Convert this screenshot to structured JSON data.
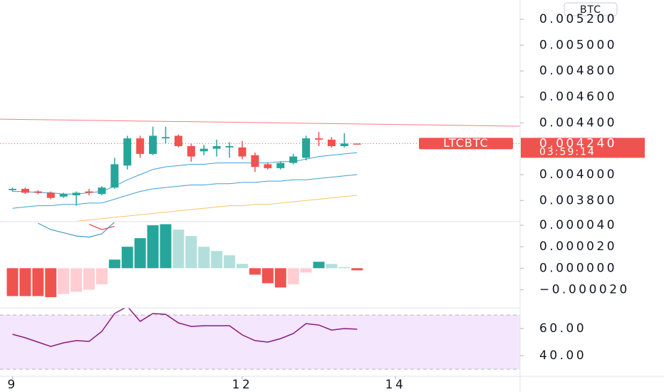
{
  "chart_data": [
    {
      "type": "candlestick",
      "symbol": "LTCBTC",
      "currency": "BTC",
      "x": [
        9,
        9.1667,
        9.3333,
        9.5,
        9.6667,
        9.8333,
        10,
        10.1667,
        10.3333,
        10.5,
        10.6667,
        10.8333,
        11,
        11.1667,
        11.3333,
        11.5,
        11.6667,
        11.8333,
        12,
        12.1667,
        12.3333,
        12.5,
        12.6667,
        12.8333,
        13,
        13.1667,
        13.3333,
        13.5
      ],
      "open": [
        0.00388,
        0.00389,
        0.00387,
        0.00386,
        0.00383,
        0.00384,
        0.00387,
        0.00385,
        0.0039,
        0.00407,
        0.00428,
        0.00416,
        0.00428,
        0.0043,
        0.00422,
        0.00418,
        0.0042,
        0.00421,
        0.00421,
        0.00415,
        0.00408,
        0.00405,
        0.00409,
        0.00413,
        0.00428,
        0.00427,
        0.00422,
        0.00424
      ],
      "high": [
        0.0039,
        0.0039,
        0.00388,
        0.00387,
        0.00386,
        0.00387,
        0.00389,
        0.00391,
        0.00413,
        0.0043,
        0.0043,
        0.00437,
        0.00437,
        0.00431,
        0.00424,
        0.00423,
        0.00427,
        0.00425,
        0.00426,
        0.00417,
        0.00409,
        0.0041,
        0.00416,
        0.0043,
        0.00433,
        0.00429,
        0.00432,
        0.00424
      ],
      "low": [
        0.00387,
        0.00385,
        0.00385,
        0.00381,
        0.00382,
        0.00376,
        0.00384,
        0.00384,
        0.00389,
        0.00404,
        0.00413,
        0.00415,
        0.00424,
        0.00421,
        0.0041,
        0.00415,
        0.00414,
        0.00413,
        0.00412,
        0.00402,
        0.00404,
        0.00404,
        0.00408,
        0.00411,
        0.00422,
        0.00421,
        0.00421,
        0.00424
      ],
      "close": [
        0.00389,
        0.00386,
        0.00386,
        0.00382,
        0.00385,
        0.00386,
        0.00386,
        0.0039,
        0.00408,
        0.00428,
        0.00416,
        0.0043,
        0.00429,
        0.00422,
        0.00414,
        0.0042,
        0.00422,
        0.00422,
        0.00414,
        0.00406,
        0.00405,
        0.00409,
        0.00414,
        0.00428,
        0.00427,
        0.00422,
        0.00424,
        0.00424
      ],
      "up_color": "#26a69a",
      "down_color": "#ef5350",
      "series": [
        {
          "color": "#3fa0d8",
          "values": [
            0.00387,
            0.00387,
            0.00386,
            0.00386,
            0.00385,
            0.00385,
            0.00386,
            0.00387,
            0.00391,
            0.00396,
            0.004,
            0.00404,
            0.00406,
            0.00407,
            0.00408,
            0.00408,
            0.00409,
            0.00409,
            0.00409,
            0.00409,
            0.00409,
            0.0041,
            0.0041,
            0.00412,
            0.00414,
            0.00415,
            0.00416,
            0.00417
          ]
        },
        {
          "color": "#3fa0d8",
          "values": [
            0.00374,
            0.00375,
            0.00376,
            0.00376,
            0.00377,
            0.00377,
            0.00378,
            0.00378,
            0.00381,
            0.00384,
            0.00387,
            0.00389,
            0.0039,
            0.00391,
            0.00392,
            0.00392,
            0.00393,
            0.00393,
            0.00394,
            0.00394,
            0.00395,
            0.00395,
            0.00396,
            0.00396,
            0.00397,
            0.00398,
            0.00399,
            0.004
          ]
        },
        {
          "color": "#f5c56b",
          "values": [
            null,
            null,
            null,
            null,
            null,
            0.00364,
            0.00365,
            0.00366,
            0.00367,
            0.00368,
            0.00369,
            0.0037,
            0.00371,
            0.00372,
            0.00373,
            0.00374,
            0.00375,
            0.00376,
            0.00376,
            0.00377,
            0.00377,
            0.00378,
            0.00379,
            0.0038,
            0.00381,
            0.00382,
            0.00383,
            0.00384
          ]
        }
      ],
      "trendline": {
        "color": "#f77c80",
        "values": [
          0.004429,
          0.004374
        ]
      },
      "last_price": {
        "value": 0.00424,
        "label": "0.004240"
      },
      "countdown": "03:59:14",
      "xlim": [
        8.837,
        15.628
      ],
      "ylim": [
        0.003642,
        0.005349
      ],
      "yticks": [
        {
          "value": 0.0038,
          "label": "0.003800"
        },
        {
          "value": 0.004,
          "label": "0.004000"
        },
        {
          "value": 0.0044,
          "label": "0.004400"
        },
        {
          "value": 0.0046,
          "label": "0.004600"
        },
        {
          "value": 0.0048,
          "label": "0.004800"
        },
        {
          "value": 0.005,
          "label": "0.005000"
        },
        {
          "value": 0.0052,
          "label": "0.005200"
        }
      ]
    },
    {
      "type": "bar",
      "x": [
        9,
        9.1667,
        9.3333,
        9.5,
        9.6667,
        9.8333,
        10,
        10.1667,
        10.3333,
        10.5,
        10.6667,
        10.8333,
        11,
        11.1667,
        11.3333,
        11.5,
        11.6667,
        11.8333,
        12,
        12.1667,
        12.3333,
        12.5,
        12.6667,
        12.8333,
        13,
        13.1667,
        13.3333,
        13.5
      ],
      "values": [
        -2.6e-05,
        -2.6e-05,
        -2.6e-05,
        -2.7e-05,
        -2.4e-05,
        -2.2e-05,
        -2e-05,
        -1.5e-05,
        8e-06,
        2e-05,
        2.8e-05,
        4e-05,
        4.1e-05,
        3.6e-05,
        3e-05,
        2e-05,
        1.6e-05,
        1.2e-05,
        4e-06,
        -6e-06,
        -1.4e-05,
        -1.8e-05,
        -1.5e-05,
        -4e-06,
        6e-06,
        4e-06,
        1e-06,
        -2e-06
      ],
      "colors": [
        "#ef5350",
        "#ef5350",
        "#ef5350",
        "#ef5350",
        "#ffcdd2",
        "#ffcdd2",
        "#ffcdd2",
        "#ffcdd2",
        "#26a69a",
        "#26a69a",
        "#26a69a",
        "#26a69a",
        "#26a69a",
        "#b2dfdb",
        "#b2dfdb",
        "#b2dfdb",
        "#b2dfdb",
        "#b2dfdb",
        "#b2dfdb",
        "#ef5350",
        "#ef5350",
        "#ef5350",
        "#ffcdd2",
        "#ffcdd2",
        "#26a69a",
        "#b2dfdb",
        "#b2dfdb",
        "#ef5350"
      ],
      "series": [
        {
          "color": "#3d9fc2",
          "values": [
            null,
            null,
            4.2e-05,
            3.6e-05,
            3.3e-05,
            3e-05,
            2.9e-05,
            3.2e-05,
            4.3e-05,
            null,
            null,
            null,
            null,
            null,
            null,
            null,
            null,
            null,
            null,
            null,
            null,
            null,
            null,
            null,
            null,
            null,
            null,
            null
          ]
        },
        {
          "color": "#e84545",
          "values": [
            null,
            null,
            null,
            null,
            null,
            null,
            4.1e-05,
            3.6e-05,
            3.9e-05,
            null,
            null,
            null,
            null,
            null,
            null,
            null,
            null,
            null,
            null,
            null,
            null,
            null,
            null,
            null,
            null,
            null,
            null,
            null
          ]
        }
      ],
      "xlim": [
        8.837,
        15.628
      ],
      "ylim": [
        -3.7e-05,
        4.27e-05
      ],
      "yticks": [
        {
          "value": -2e-05,
          "label": "−0.000020"
        },
        {
          "value": 0,
          "label": "0.000000"
        },
        {
          "value": 2e-05,
          "label": "0.000020"
        },
        {
          "value": 4e-05,
          "label": "0.000040"
        }
      ]
    },
    {
      "type": "line",
      "x": [
        9,
        9.1667,
        9.3333,
        9.5,
        9.6667,
        9.8333,
        10,
        10.1667,
        10.3333,
        10.5,
        10.6667,
        10.8333,
        11,
        11.1667,
        11.3333,
        11.5,
        11.6667,
        11.8333,
        12,
        12.1667,
        12.3333,
        12.5,
        12.6667,
        12.8333,
        13,
        13.1667,
        13.3333,
        13.5
      ],
      "values": [
        55.8,
        53.2,
        50,
        46.8,
        49.5,
        51.1,
        50.5,
        57.9,
        71.1,
        76.3,
        65.3,
        71.1,
        70.5,
        64.2,
        61.6,
        62.1,
        62.1,
        62.1,
        55.3,
        51.1,
        50,
        52.6,
        56.3,
        63.7,
        62.6,
        58.9,
        60,
        59.5
      ],
      "color": "#8e1a7e",
      "band": [
        30,
        70
      ],
      "band_color": "#f3e6fd",
      "xlim": [
        8.837,
        15.628
      ],
      "ylim": [
        24.74,
        75.26
      ],
      "yticks": [
        {
          "value": 40,
          "label": "40.00"
        },
        {
          "value": 60,
          "label": "60.00"
        }
      ],
      "xticks": [
        9,
        12,
        14
      ]
    }
  ]
}
